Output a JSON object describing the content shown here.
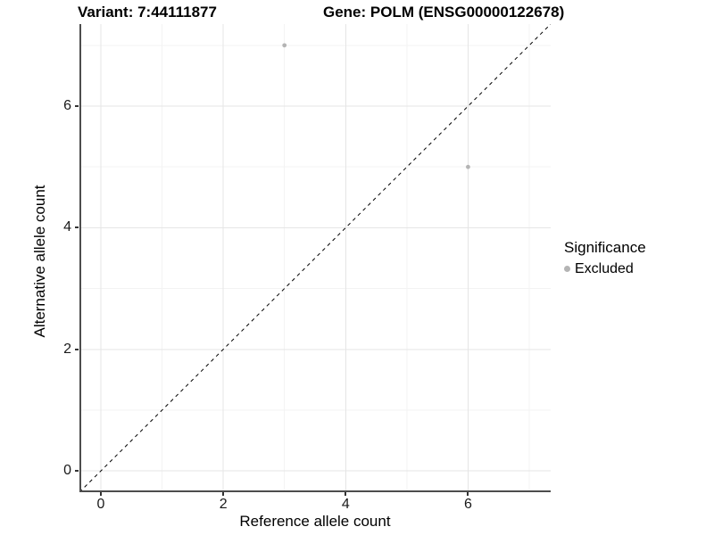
{
  "titles": {
    "variant": "Variant: 7:44111877",
    "gene": "Gene: POLM (ENSG00000122678)"
  },
  "chart_data": {
    "type": "scatter",
    "xlabel": "Reference allele count",
    "ylabel": "Alternative allele count",
    "xlim": [
      -0.35,
      7.35
    ],
    "ylim": [
      -0.35,
      7.35
    ],
    "major_ticks": [
      0,
      2,
      4,
      6
    ],
    "minor_ticks": [
      1,
      3,
      5,
      7
    ],
    "grid": true,
    "identity_line": {
      "style": "dashed",
      "from": -0.35,
      "to": 7.35
    },
    "series": [
      {
        "name": "Excluded",
        "points": [
          {
            "x": 3,
            "y": 7
          },
          {
            "x": 6,
            "y": 5
          }
        ]
      }
    ],
    "legend": {
      "title": "Significance",
      "position": "right",
      "items": [
        {
          "label": "Excluded",
          "color": "#b4b4b4"
        }
      ]
    },
    "colors": {
      "points": "#b4b4b4",
      "axis_line": "#4d4d4d",
      "tick": "#333333",
      "grid_major": "#e5e5e5",
      "grid_minor": "#f3f3f3",
      "identity_line": "#000000"
    }
  }
}
